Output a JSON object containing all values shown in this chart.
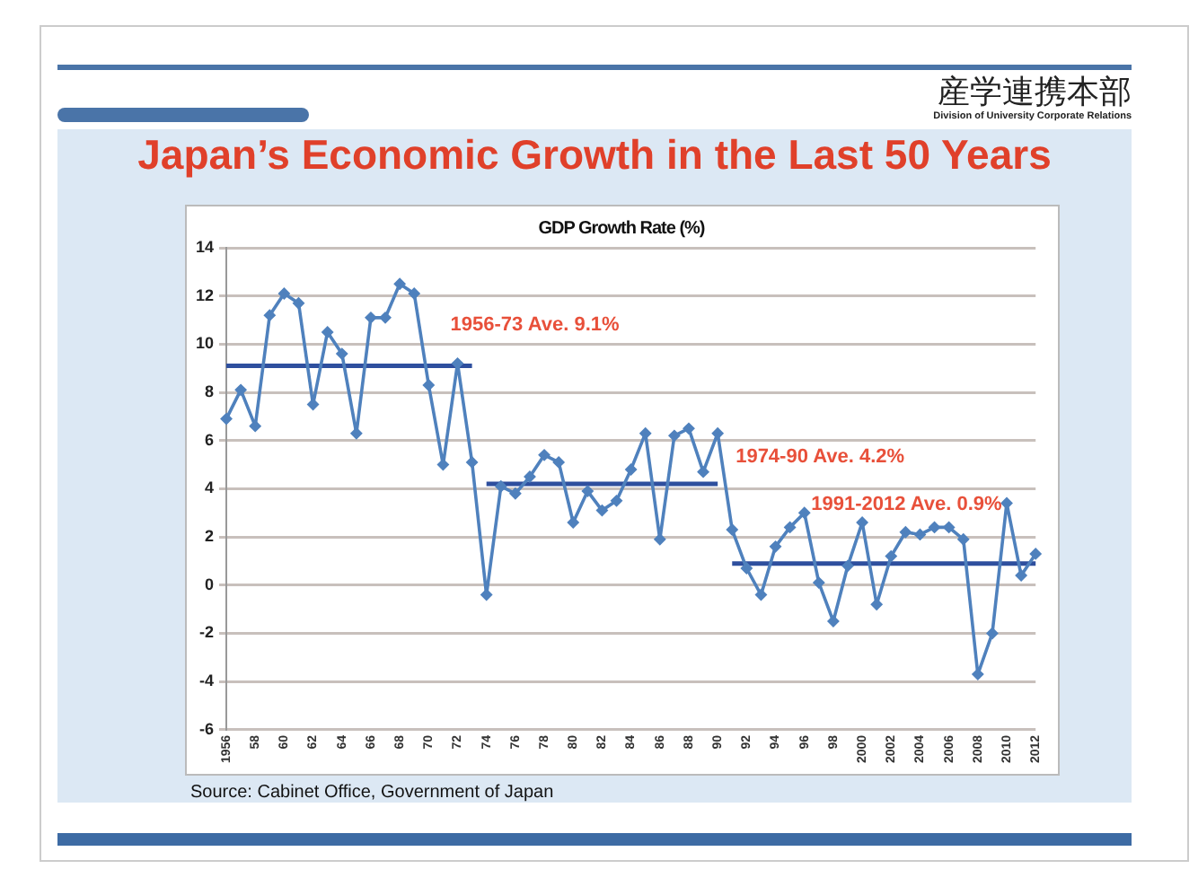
{
  "chart_data": {
    "type": "line",
    "title": "Japan’s Economic Growth in the Last 50 Years",
    "subtitle": "GDP Growth Rate (%)",
    "annotations": [
      "産学連携本部",
      "Division of University Corporate Relations",
      "Source: Cabinet Office, Government of Japan"
    ],
    "categories": [
      "1956",
      null,
      "58",
      null,
      "60",
      null,
      "62",
      null,
      "64",
      null,
      "66",
      null,
      "68",
      null,
      "70",
      null,
      "72",
      null,
      "74",
      null,
      "76",
      null,
      "78",
      null,
      "80",
      null,
      "82",
      null,
      "84",
      null,
      "86",
      null,
      "88",
      null,
      "90",
      null,
      "92",
      null,
      "94",
      null,
      "96",
      null,
      "98",
      null,
      "2000",
      null,
      "2002",
      null,
      "2004",
      null,
      "2006",
      null,
      "2008",
      null,
      "2010",
      null,
      "2012"
    ],
    "series": [
      {
        "color": "#4f81bd",
        "marker": "diamond",
        "values": [
          6.9,
          8.1,
          6.6,
          11.2,
          12.1,
          11.7,
          7.5,
          10.5,
          9.6,
          6.3,
          11.1,
          11.1,
          12.5,
          12.1,
          8.3,
          5.0,
          9.2,
          5.1,
          -0.4,
          4.1,
          3.8,
          4.5,
          5.4,
          5.1,
          2.6,
          3.9,
          3.1,
          3.5,
          4.8,
          6.3,
          1.9,
          6.2,
          6.5,
          4.7,
          6.3,
          2.3,
          0.7,
          -0.4,
          1.6,
          2.4,
          3.0,
          0.1,
          -1.5,
          0.8,
          2.6,
          -0.8,
          1.2,
          2.2,
          2.1,
          2.4,
          2.4,
          1.9,
          -3.7,
          -2.0,
          3.4,
          0.4,
          1.3
        ]
      },
      {
        "name": "1956-73 Ave. 9.1%",
        "color": "#2e4f9e",
        "marker": "none",
        "values": [
          9.1,
          9.1,
          9.1,
          9.1,
          9.1,
          9.1,
          9.1,
          9.1,
          9.1,
          9.1,
          9.1,
          9.1,
          9.1,
          9.1,
          9.1,
          9.1,
          9.1,
          9.1,
          null,
          null,
          null,
          null,
          null,
          null,
          null,
          null,
          null,
          null,
          null,
          null,
          null,
          null,
          null,
          null,
          null,
          null,
          null,
          null,
          null,
          null,
          null,
          null,
          null,
          null,
          null,
          null,
          null,
          null,
          null,
          null,
          null,
          null,
          null,
          null,
          null,
          null,
          null
        ]
      },
      {
        "name": "1974-90 Ave. 4.2%",
        "color": "#2e4f9e",
        "marker": "none",
        "values": [
          null,
          null,
          null,
          null,
          null,
          null,
          null,
          null,
          null,
          null,
          null,
          null,
          null,
          null,
          null,
          null,
          null,
          null,
          4.2,
          4.2,
          4.2,
          4.2,
          4.2,
          4.2,
          4.2,
          4.2,
          4.2,
          4.2,
          4.2,
          4.2,
          4.2,
          4.2,
          4.2,
          4.2,
          4.2,
          null,
          null,
          null,
          null,
          null,
          null,
          null,
          null,
          null,
          null,
          null,
          null,
          null,
          null,
          null,
          null,
          null,
          null,
          null,
          null,
          null,
          null
        ]
      },
      {
        "name": "1991-2012 Ave. 0.9%",
        "color": "#2e4f9e",
        "marker": "none",
        "values": [
          null,
          null,
          null,
          null,
          null,
          null,
          null,
          null,
          null,
          null,
          null,
          null,
          null,
          null,
          null,
          null,
          null,
          null,
          null,
          null,
          null,
          null,
          null,
          null,
          null,
          null,
          null,
          null,
          null,
          null,
          null,
          null,
          null,
          null,
          null,
          0.9,
          0.9,
          0.9,
          0.9,
          0.9,
          0.9,
          0.9,
          0.9,
          0.9,
          0.9,
          0.9,
          0.9,
          0.9,
          0.9,
          0.9,
          0.9,
          0.9,
          0.9,
          0.9,
          0.9,
          0.9,
          0.9
        ]
      }
    ],
    "ylim": [
      -6,
      14
    ],
    "yticks": [
      -6,
      -4,
      -2,
      0,
      2,
      4,
      6,
      8,
      10,
      12,
      14
    ],
    "grid": "y",
    "legend": false
  }
}
